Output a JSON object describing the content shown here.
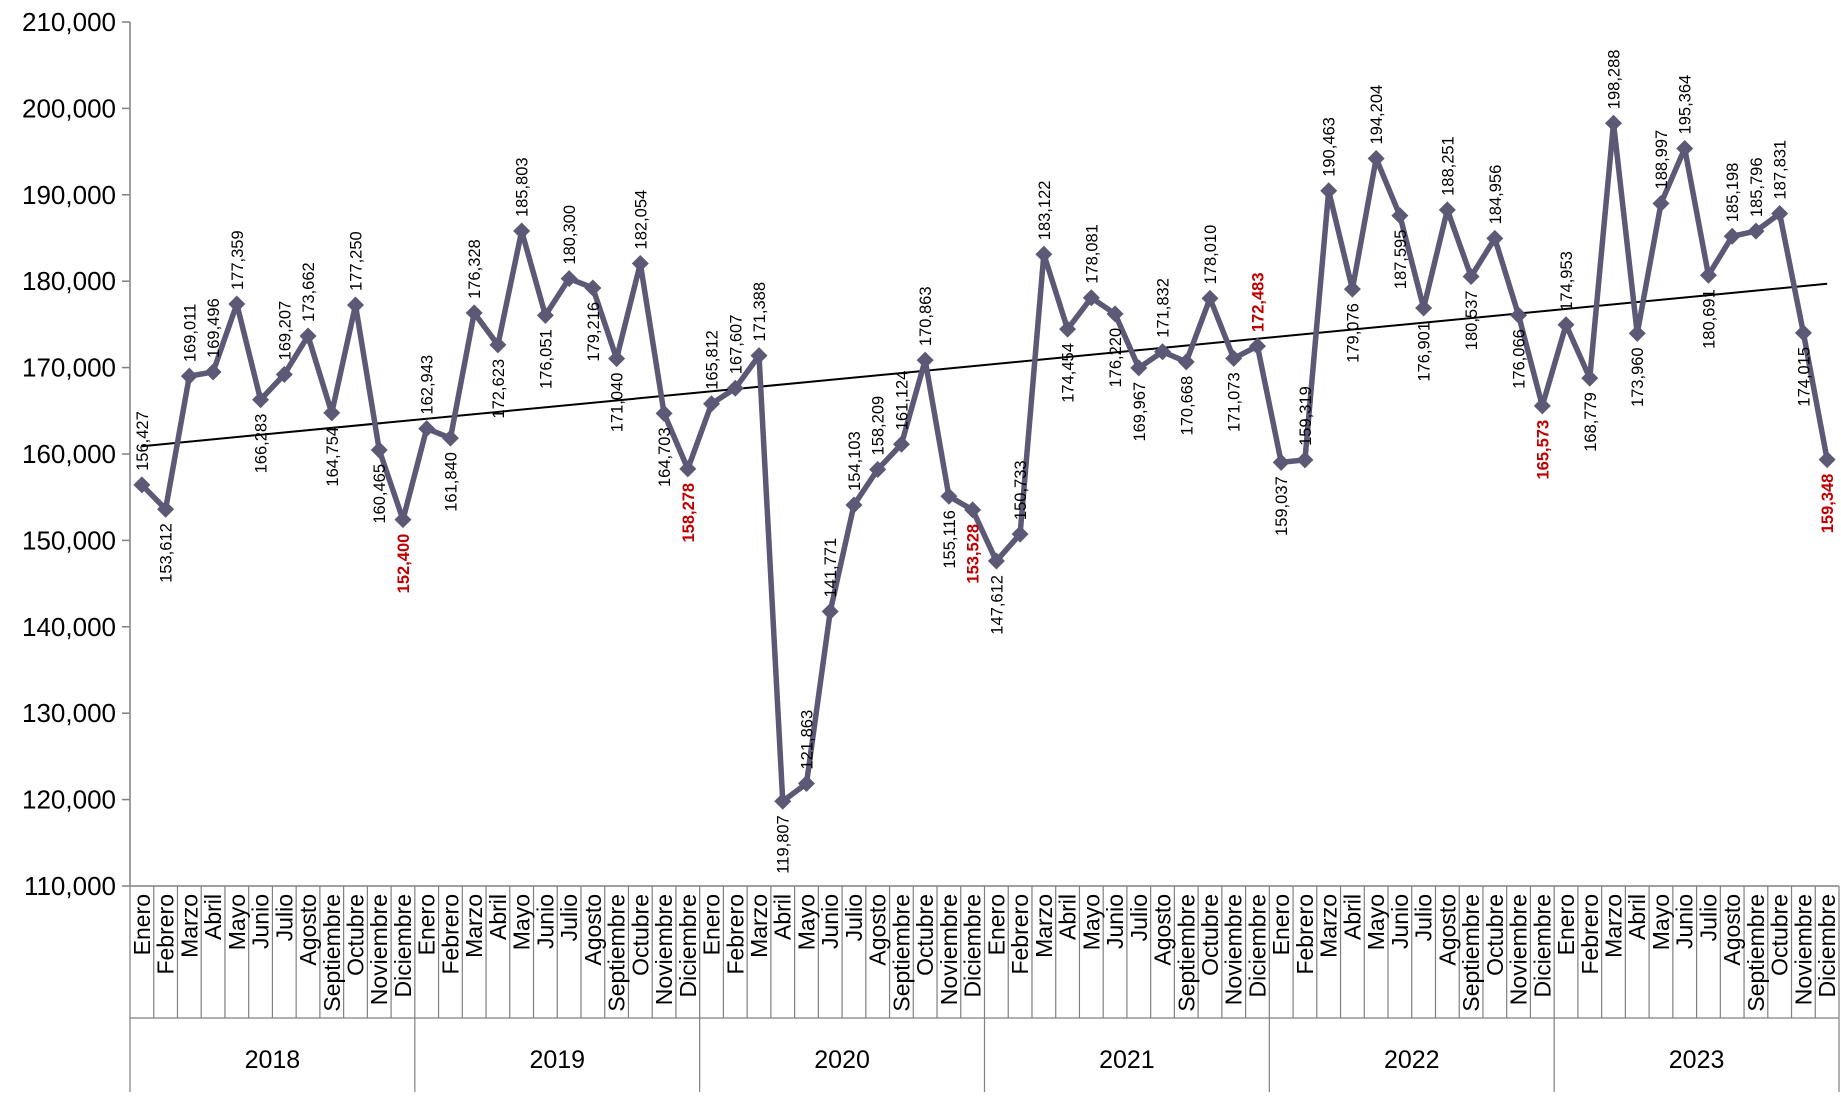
{
  "chart_data": {
    "type": "line",
    "title": "",
    "xlabel": "",
    "ylabel": "",
    "ylim": [
      110000,
      210000
    ],
    "yticks": [
      110000,
      120000,
      130000,
      140000,
      150000,
      160000,
      170000,
      180000,
      190000,
      200000,
      210000
    ],
    "ytick_labels": [
      "110,000",
      "120,000",
      "130,000",
      "140,000",
      "150,000",
      "160,000",
      "170,000",
      "180,000",
      "190,000",
      "200,000",
      "210,000"
    ],
    "years": [
      "2018",
      "2019",
      "2020",
      "2021",
      "2022",
      "2023"
    ],
    "months": [
      "Enero",
      "Febrero",
      "Marzo",
      "Abril",
      "Mayo",
      "Junio",
      "Julio",
      "Agosto",
      "Septiembre",
      "Octubre",
      "Noviembre",
      "Diciembre"
    ],
    "series": [
      {
        "values": [
          156427,
          153612,
          169011,
          169496,
          177359,
          166283,
          169207,
          173662,
          164754,
          177250,
          160465,
          152400,
          162943,
          161840,
          176328,
          172623,
          185803,
          176051,
          180300,
          179216,
          171040,
          182054,
          164703,
          158278,
          165812,
          167607,
          171388,
          119807,
          121863,
          141771,
          154103,
          158209,
          161124,
          170863,
          155116,
          153528,
          147612,
          150733,
          183122,
          174454,
          178081,
          176220,
          169967,
          171832,
          170668,
          178010,
          171073,
          172483,
          159037,
          159319,
          190463,
          179076,
          194204,
          187595,
          176901,
          188251,
          180537,
          184956,
          176066,
          165573,
          174953,
          168779,
          198288,
          173960,
          188997,
          195364,
          180691,
          185198,
          185796,
          187831,
          174015,
          159348
        ],
        "labels": [
          "156,427",
          "153,612",
          "169,011",
          "169,496",
          "177,359",
          "166,283",
          "169,207",
          "173,662",
          "164,754",
          "177,250",
          "160,465",
          "152,400",
          "162,943",
          "161,840",
          "176,328",
          "172,623",
          "185,803",
          "176,051",
          "180,300",
          "179,216",
          "171,040",
          "182,054",
          "164,703",
          "158,278",
          "165,812",
          "167,607",
          "171,388",
          "119,807",
          "121,863",
          "141,771",
          "154,103",
          "158,209",
          "161,124",
          "170,863",
          "155,116",
          "153,528",
          "147,612",
          "150,733",
          "183,122",
          "174,454",
          "178,081",
          "176,220",
          "169,967",
          "171,832",
          "170,668",
          "178,010",
          "171,073",
          "172,483",
          "159,037",
          "159,319",
          "190,463",
          "179,076",
          "194,204",
          "187,595",
          "176,901",
          "188,251",
          "180,537",
          "184,956",
          "176,066",
          "165,573",
          "174,953",
          "168,779",
          "198,288",
          "173,960",
          "188,997",
          "195,364",
          "180,691",
          "185,198",
          "185,796",
          "187,831",
          "174,015",
          "159,348"
        ],
        "highlighted_labels": [
          "152,400",
          "158,278",
          "153,528",
          "172,483",
          "165,573",
          "159,348"
        ]
      }
    ],
    "trendline": {
      "type": "linear"
    },
    "grid": false,
    "legend": "none",
    "colors": {
      "series": "#5b5975",
      "trend": "#000000",
      "highlight": "#c00000",
      "axis": "#808080"
    }
  }
}
